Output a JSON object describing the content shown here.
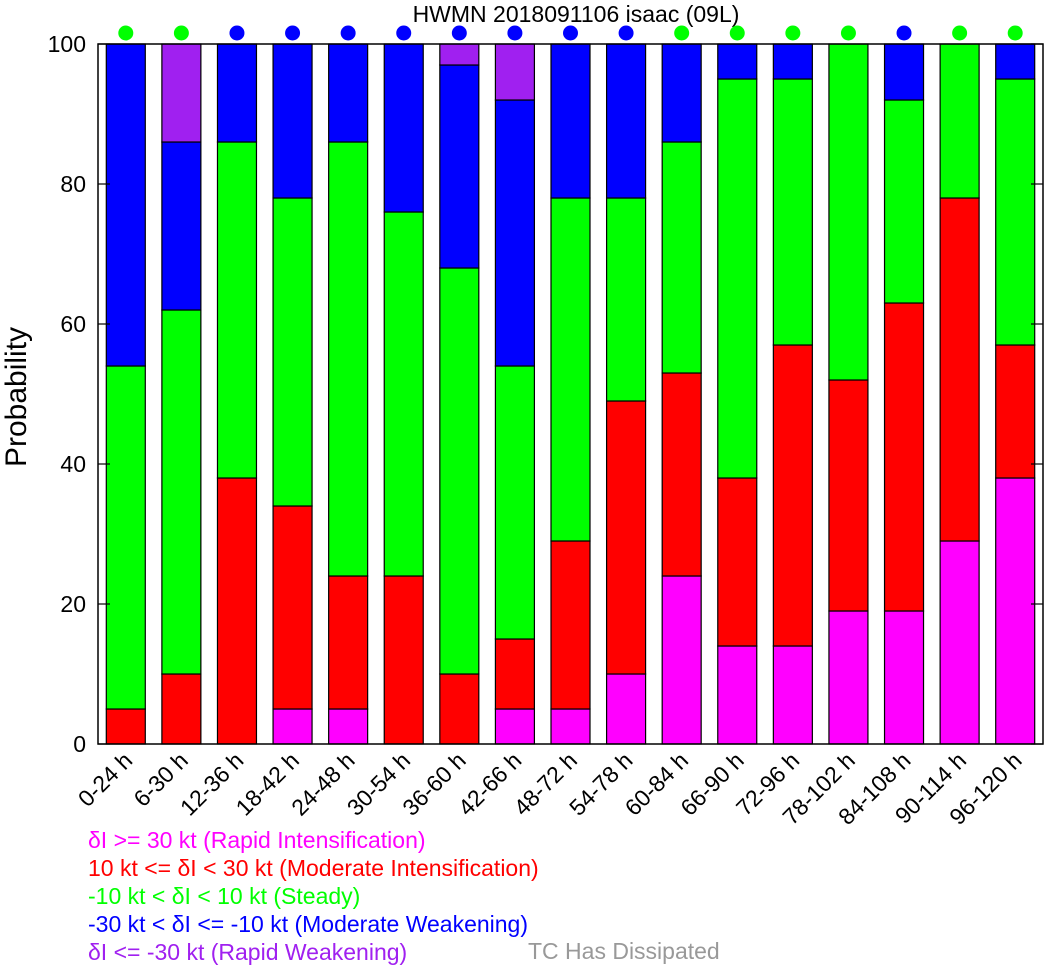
{
  "chart_data": {
    "type": "bar",
    "stacked": true,
    "title": "HWMN 2018091106 isaac (09L)",
    "xlabel": "",
    "ylabel": "Probability",
    "ylim": [
      0,
      100
    ],
    "yticks": [
      0,
      20,
      40,
      60,
      80,
      100
    ],
    "grid": false,
    "categories": [
      "0-24 h",
      "6-30 h",
      "12-36 h",
      "18-42 h",
      "24-48 h",
      "30-54 h",
      "36-60 h",
      "42-66 h",
      "48-72 h",
      "54-78 h",
      "60-84 h",
      "66-90 h",
      "72-96 h",
      "78-102 h",
      "84-108 h",
      "90-114 h",
      "96-120 h"
    ],
    "series": [
      {
        "name": "Rapid Intensification",
        "color": "#ff00ff",
        "values": [
          0,
          0,
          0,
          5,
          5,
          0,
          0,
          5,
          5,
          10,
          24,
          14,
          14,
          19,
          19,
          29,
          38
        ]
      },
      {
        "name": "Moderate Intensification",
        "color": "#ff0000",
        "values": [
          5,
          10,
          38,
          29,
          19,
          24,
          10,
          10,
          24,
          39,
          29,
          24,
          43,
          33,
          44,
          49,
          19
        ]
      },
      {
        "name": "Steady",
        "color": "#00ff00",
        "values": [
          49,
          52,
          48,
          44,
          62,
          52,
          58,
          39,
          49,
          29,
          33,
          57,
          38,
          48,
          29,
          22,
          38
        ]
      },
      {
        "name": "Moderate Weakening",
        "color": "#0000ff",
        "values": [
          46,
          24,
          14,
          22,
          14,
          24,
          29,
          38,
          22,
          22,
          14,
          5,
          5,
          0,
          8,
          0,
          5
        ]
      },
      {
        "name": "Rapid Weakening",
        "color": "#a020f0",
        "values": [
          0,
          14,
          0,
          0,
          0,
          0,
          3,
          8,
          0,
          0,
          0,
          0,
          0,
          0,
          0,
          0,
          0
        ]
      }
    ],
    "top_markers": {
      "description": "Color of dot above each bar",
      "colors": [
        "#00ff00",
        "#00ff00",
        "#0000ff",
        "#0000ff",
        "#0000ff",
        "#0000ff",
        "#0000ff",
        "#0000ff",
        "#0000ff",
        "#0000ff",
        "#00ff00",
        "#00ff00",
        "#00ff00",
        "#00ff00",
        "#0000ff",
        "#00ff00",
        "#00ff00"
      ]
    },
    "legend": [
      {
        "text": "δI >= 30 kt (Rapid Intensification)",
        "color": "#ff00ff"
      },
      {
        "text": "10 kt <= δI < 30 kt (Moderate Intensification)",
        "color": "#ff0000"
      },
      {
        "text": "-10 kt < δI < 10 kt (Steady)",
        "color": "#00ff00"
      },
      {
        "text": "-30 kt < δI <= -10 kt (Moderate Weakening)",
        "color": "#0000ff"
      },
      {
        "text": "δI <= -30 kt (Rapid Weakening)",
        "color": "#a020f0"
      }
    ],
    "dissipated_label": {
      "text": "TC Has Dissipated",
      "color": "#999999"
    }
  }
}
